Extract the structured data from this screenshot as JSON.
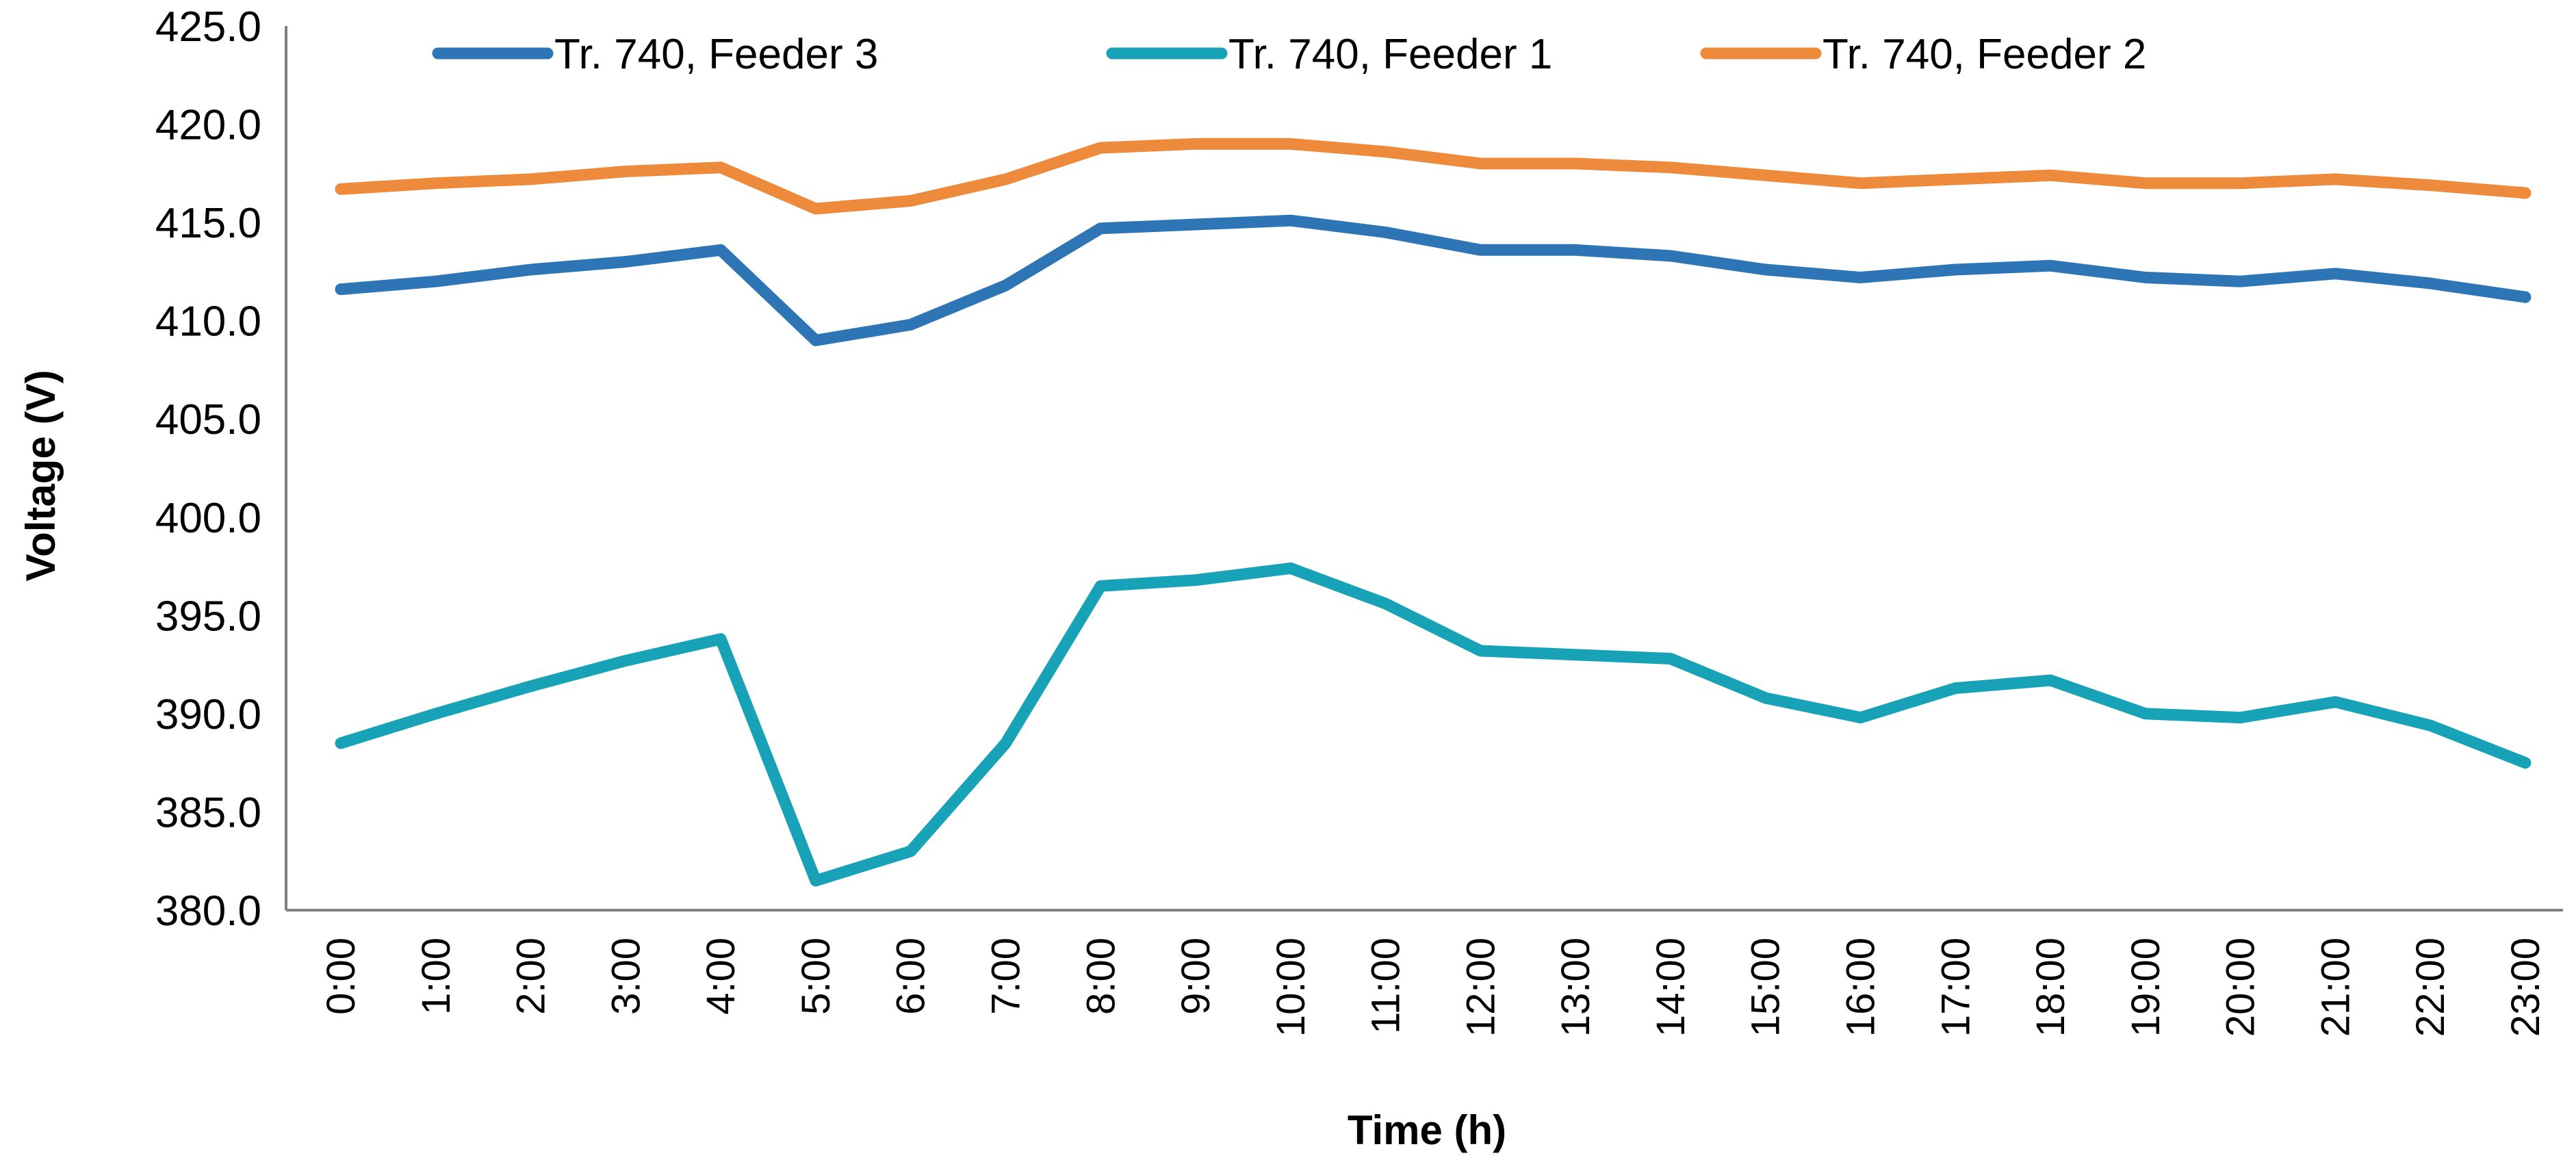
{
  "chart_data": {
    "type": "line",
    "title": "",
    "xlabel": "Time (h)",
    "ylabel": "Voltage (V)",
    "ylim": [
      380,
      425
    ],
    "yticks": [
      "380.0",
      "385.0",
      "390.0",
      "395.0",
      "400.0",
      "405.0",
      "410.0",
      "415.0",
      "420.0",
      "425.0"
    ],
    "grid": false,
    "legend_position": "top",
    "categories": [
      "0:00",
      "1:00",
      "2:00",
      "3:00",
      "4:00",
      "5:00",
      "6:00",
      "7:00",
      "8:00",
      "9:00",
      "10:00",
      "11:00",
      "12:00",
      "13:00",
      "14:00",
      "15:00",
      "16:00",
      "17:00",
      "18:00",
      "19:00",
      "20:00",
      "21:00",
      "22:00",
      "23:00"
    ],
    "series": [
      {
        "name": "Tr. 740, Feeder 3",
        "color": "#2e75b6",
        "values": [
          411.6,
          412.0,
          412.6,
          413.0,
          413.6,
          409.0,
          409.8,
          411.8,
          414.7,
          414.9,
          415.1,
          414.5,
          413.6,
          413.6,
          413.3,
          412.6,
          412.2,
          412.6,
          412.8,
          412.2,
          412.0,
          412.4,
          411.9,
          411.2
        ]
      },
      {
        "name": "Tr. 740, Feeder 1",
        "color": "#17a2b8",
        "values": [
          388.5,
          390.0,
          391.4,
          392.7,
          393.8,
          381.5,
          383.0,
          388.5,
          396.5,
          396.8,
          397.4,
          395.6,
          393.2,
          393.0,
          392.8,
          390.8,
          389.8,
          391.3,
          391.7,
          390.0,
          389.8,
          390.6,
          389.4,
          387.5
        ]
      },
      {
        "name": "Tr. 740, Feeder 2",
        "color": "#ed8a3b",
        "values": [
          416.7,
          417.0,
          417.2,
          417.6,
          417.8,
          415.7,
          416.1,
          417.2,
          418.8,
          419.0,
          419.0,
          418.6,
          418.0,
          418.0,
          417.8,
          417.4,
          417.0,
          417.2,
          417.4,
          417.0,
          417.0,
          417.2,
          416.9,
          416.5
        ]
      }
    ]
  }
}
